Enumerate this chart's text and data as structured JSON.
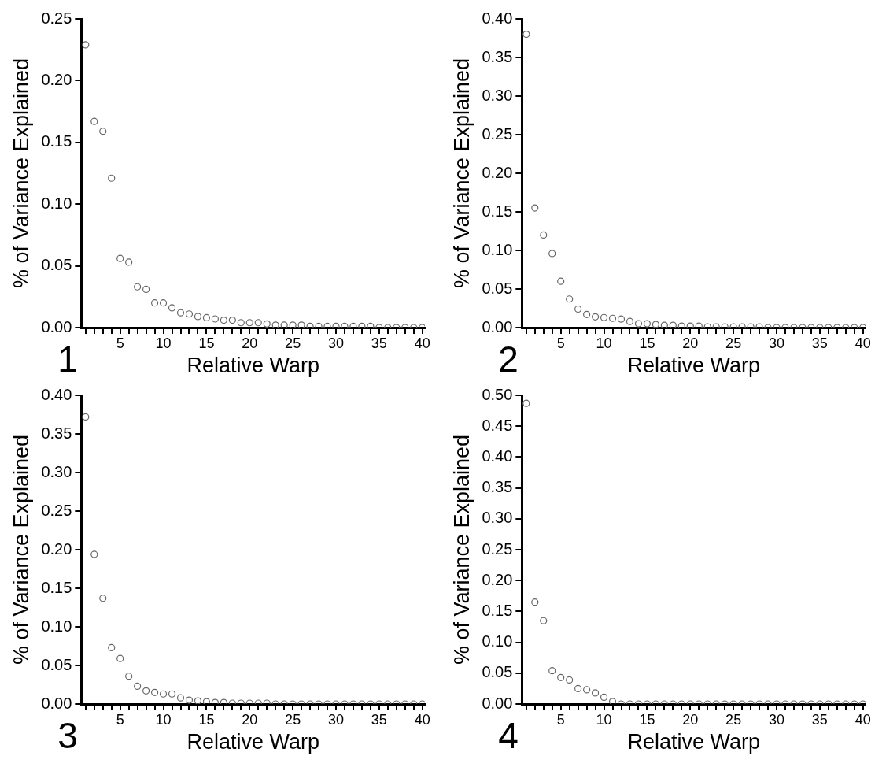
{
  "chart_data": [
    {
      "type": "scatter",
      "annotations": [
        "1"
      ],
      "xlabel": "Relative Warp",
      "ylabel": "% of Variance Explained",
      "marker": "circle",
      "grid": false,
      "legend": false,
      "x": [
        1,
        2,
        3,
        4,
        5,
        6,
        7,
        8,
        9,
        10,
        11,
        12,
        13,
        14,
        15,
        16,
        17,
        18,
        19,
        20,
        21,
        22,
        23,
        24,
        25,
        26,
        27,
        28,
        29,
        30,
        31,
        32,
        33,
        34,
        35,
        36,
        37,
        38,
        39,
        40
      ],
      "series": [
        {
          "color": "#666666",
          "values": [
            0.229,
            0.167,
            0.159,
            0.121,
            0.056,
            0.053,
            0.033,
            0.031,
            0.02,
            0.02,
            0.016,
            0.012,
            0.011,
            0.009,
            0.008,
            0.007,
            0.006,
            0.006,
            0.004,
            0.004,
            0.004,
            0.003,
            0.002,
            0.002,
            0.002,
            0.002,
            0.001,
            0.001,
            0.001,
            0.001,
            0.001,
            0.001,
            0.001,
            0.001,
            0,
            0,
            0,
            0,
            0,
            0
          ]
        }
      ],
      "xlim": [
        0.5,
        40.3
      ],
      "ylim": [
        0,
        0.25
      ],
      "xticks": [
        {
          "value": 1,
          "label": null
        },
        {
          "value": 2,
          "label": null
        },
        {
          "value": 3,
          "label": null
        },
        {
          "value": 4,
          "label": null
        },
        5,
        {
          "value": 6,
          "label": null
        },
        {
          "value": 7,
          "label": null
        },
        {
          "value": 8,
          "label": null
        },
        {
          "value": 9,
          "label": null
        },
        10,
        {
          "value": 11,
          "label": null
        },
        {
          "value": 12,
          "label": null
        },
        {
          "value": 13,
          "label": null
        },
        {
          "value": 14,
          "label": null
        },
        15,
        {
          "value": 16,
          "label": null
        },
        {
          "value": 17,
          "label": null
        },
        {
          "value": 18,
          "label": null
        },
        {
          "value": 19,
          "label": null
        },
        20,
        {
          "value": 21,
          "label": null
        },
        {
          "value": 22,
          "label": null
        },
        {
          "value": 23,
          "label": null
        },
        {
          "value": 24,
          "label": null
        },
        25,
        {
          "value": 26,
          "label": null
        },
        {
          "value": 27,
          "label": null
        },
        {
          "value": 28,
          "label": null
        },
        {
          "value": 29,
          "label": null
        },
        30,
        {
          "value": 31,
          "label": null
        },
        {
          "value": 32,
          "label": null
        },
        {
          "value": 33,
          "label": null
        },
        {
          "value": 34,
          "label": null
        },
        35,
        {
          "value": 36,
          "label": null
        },
        {
          "value": 37,
          "label": null
        },
        {
          "value": 38,
          "label": null
        },
        {
          "value": 39,
          "label": null
        },
        40
      ],
      "yticks": [
        {
          "value": 0,
          "label": "0.00"
        },
        {
          "value": 0.05,
          "label": "0.05"
        },
        {
          "value": 0.1,
          "label": "0.10"
        },
        {
          "value": 0.15,
          "label": "0.15"
        },
        {
          "value": 0.2,
          "label": "0.20"
        },
        {
          "value": 0.25,
          "label": "0.25"
        }
      ]
    },
    {
      "type": "scatter",
      "annotations": [
        "2"
      ],
      "xlabel": "Relative Warp",
      "ylabel": "% of Variance Explained",
      "marker": "circle",
      "grid": false,
      "legend": false,
      "x": [
        1,
        2,
        3,
        4,
        5,
        6,
        7,
        8,
        9,
        10,
        11,
        12,
        13,
        14,
        15,
        16,
        17,
        18,
        19,
        20,
        21,
        22,
        23,
        24,
        25,
        26,
        27,
        28,
        29,
        30,
        31,
        32,
        33,
        34,
        35,
        36,
        37,
        38,
        39,
        40
      ],
      "series": [
        {
          "color": "#666666",
          "values": [
            0.38,
            0.155,
            0.12,
            0.096,
            0.06,
            0.037,
            0.024,
            0.017,
            0.014,
            0.013,
            0.012,
            0.011,
            0.008,
            0.005,
            0.005,
            0.004,
            0.003,
            0.003,
            0.002,
            0.002,
            0.002,
            0.001,
            0.001,
            0.001,
            0.001,
            0.001,
            0.001,
            0.001,
            0,
            0,
            0,
            0,
            0,
            0,
            0,
            0,
            0,
            0,
            0,
            0
          ]
        }
      ],
      "xlim": [
        0.5,
        40.3
      ],
      "ylim": [
        0,
        0.4
      ],
      "xticks": [
        {
          "value": 1,
          "label": null
        },
        {
          "value": 2,
          "label": null
        },
        {
          "value": 3,
          "label": null
        },
        {
          "value": 4,
          "label": null
        },
        5,
        {
          "value": 6,
          "label": null
        },
        {
          "value": 7,
          "label": null
        },
        {
          "value": 8,
          "label": null
        },
        {
          "value": 9,
          "label": null
        },
        10,
        {
          "value": 11,
          "label": null
        },
        {
          "value": 12,
          "label": null
        },
        {
          "value": 13,
          "label": null
        },
        {
          "value": 14,
          "label": null
        },
        15,
        {
          "value": 16,
          "label": null
        },
        {
          "value": 17,
          "label": null
        },
        {
          "value": 18,
          "label": null
        },
        {
          "value": 19,
          "label": null
        },
        20,
        {
          "value": 21,
          "label": null
        },
        {
          "value": 22,
          "label": null
        },
        {
          "value": 23,
          "label": null
        },
        {
          "value": 24,
          "label": null
        },
        25,
        {
          "value": 26,
          "label": null
        },
        {
          "value": 27,
          "label": null
        },
        {
          "value": 28,
          "label": null
        },
        {
          "value": 29,
          "label": null
        },
        30,
        {
          "value": 31,
          "label": null
        },
        {
          "value": 32,
          "label": null
        },
        {
          "value": 33,
          "label": null
        },
        {
          "value": 34,
          "label": null
        },
        35,
        {
          "value": 36,
          "label": null
        },
        {
          "value": 37,
          "label": null
        },
        {
          "value": 38,
          "label": null
        },
        {
          "value": 39,
          "label": null
        },
        40
      ],
      "yticks": [
        {
          "value": 0,
          "label": "0.00"
        },
        {
          "value": 0.05,
          "label": "0.05"
        },
        {
          "value": 0.1,
          "label": "0.10"
        },
        {
          "value": 0.15,
          "label": "0.15"
        },
        {
          "value": 0.2,
          "label": "0.20"
        },
        {
          "value": 0.25,
          "label": "0.25"
        },
        {
          "value": 0.3,
          "label": "0.30"
        },
        {
          "value": 0.35,
          "label": "0.35"
        },
        {
          "value": 0.4,
          "label": "0.40"
        }
      ]
    },
    {
      "type": "scatter",
      "annotations": [
        "3"
      ],
      "xlabel": "Relative Warp",
      "ylabel": "% of Variance Explained",
      "marker": "circle",
      "grid": false,
      "legend": false,
      "x": [
        1,
        2,
        3,
        4,
        5,
        6,
        7,
        8,
        9,
        10,
        11,
        12,
        13,
        14,
        15,
        16,
        17,
        18,
        19,
        20,
        21,
        22,
        23,
        24,
        25,
        26,
        27,
        28,
        29,
        30,
        31,
        32,
        33,
        34,
        35,
        36,
        37,
        38,
        39,
        40
      ],
      "series": [
        {
          "color": "#666666",
          "values": [
            0.372,
            0.194,
            0.137,
            0.073,
            0.059,
            0.036,
            0.023,
            0.017,
            0.015,
            0.013,
            0.013,
            0.008,
            0.005,
            0.004,
            0.003,
            0.002,
            0.002,
            0.001,
            0.001,
            0.001,
            0.001,
            0.001,
            0,
            0,
            0,
            0,
            0,
            0,
            0,
            0,
            0,
            0,
            0,
            0,
            0,
            0,
            0,
            0,
            0,
            0
          ]
        }
      ],
      "xlim": [
        0.5,
        40.3
      ],
      "ylim": [
        0,
        0.4
      ],
      "xticks": [
        {
          "value": 1,
          "label": null
        },
        {
          "value": 2,
          "label": null
        },
        {
          "value": 3,
          "label": null
        },
        {
          "value": 4,
          "label": null
        },
        5,
        {
          "value": 6,
          "label": null
        },
        {
          "value": 7,
          "label": null
        },
        {
          "value": 8,
          "label": null
        },
        {
          "value": 9,
          "label": null
        },
        10,
        {
          "value": 11,
          "label": null
        },
        {
          "value": 12,
          "label": null
        },
        {
          "value": 13,
          "label": null
        },
        {
          "value": 14,
          "label": null
        },
        15,
        {
          "value": 16,
          "label": null
        },
        {
          "value": 17,
          "label": null
        },
        {
          "value": 18,
          "label": null
        },
        {
          "value": 19,
          "label": null
        },
        20,
        {
          "value": 21,
          "label": null
        },
        {
          "value": 22,
          "label": null
        },
        {
          "value": 23,
          "label": null
        },
        {
          "value": 24,
          "label": null
        },
        25,
        {
          "value": 26,
          "label": null
        },
        {
          "value": 27,
          "label": null
        },
        {
          "value": 28,
          "label": null
        },
        {
          "value": 29,
          "label": null
        },
        30,
        {
          "value": 31,
          "label": null
        },
        {
          "value": 32,
          "label": null
        },
        {
          "value": 33,
          "label": null
        },
        {
          "value": 34,
          "label": null
        },
        35,
        {
          "value": 36,
          "label": null
        },
        {
          "value": 37,
          "label": null
        },
        {
          "value": 38,
          "label": null
        },
        {
          "value": 39,
          "label": null
        },
        40
      ],
      "yticks": [
        {
          "value": 0,
          "label": "0.00"
        },
        {
          "value": 0.05,
          "label": "0.05"
        },
        {
          "value": 0.1,
          "label": "0.10"
        },
        {
          "value": 0.15,
          "label": "0.15"
        },
        {
          "value": 0.2,
          "label": "0.20"
        },
        {
          "value": 0.25,
          "label": "0.25"
        },
        {
          "value": 0.3,
          "label": "0.30"
        },
        {
          "value": 0.35,
          "label": "0.35"
        },
        {
          "value": 0.4,
          "label": "0.40"
        }
      ]
    },
    {
      "type": "scatter",
      "annotations": [
        "4"
      ],
      "xlabel": "Relative Warp",
      "ylabel": "% of Variance Explained",
      "marker": "circle",
      "grid": false,
      "legend": false,
      "x": [
        1,
        2,
        3,
        4,
        5,
        6,
        7,
        8,
        9,
        10,
        11,
        12,
        13,
        14,
        15,
        16,
        17,
        18,
        19,
        20,
        21,
        22,
        23,
        24,
        25,
        26,
        27,
        28,
        29,
        30,
        31,
        32,
        33,
        34,
        35,
        36,
        37,
        38,
        39,
        40
      ],
      "series": [
        {
          "color": "#666666",
          "values": [
            0.487,
            0.165,
            0.135,
            0.054,
            0.043,
            0.039,
            0.025,
            0.023,
            0.018,
            0.011,
            0.004,
            0,
            0,
            0,
            0,
            0,
            0,
            0,
            0,
            0,
            0,
            0,
            0,
            0,
            0,
            0,
            0,
            0,
            0,
            0,
            0,
            0,
            0,
            0,
            0,
            0,
            0,
            0,
            0,
            0
          ]
        }
      ],
      "xlim": [
        0.5,
        40.3
      ],
      "ylim": [
        0,
        0.5
      ],
      "xticks": [
        {
          "value": 1,
          "label": null
        },
        {
          "value": 2,
          "label": null
        },
        {
          "value": 3,
          "label": null
        },
        {
          "value": 4,
          "label": null
        },
        5,
        {
          "value": 6,
          "label": null
        },
        {
          "value": 7,
          "label": null
        },
        {
          "value": 8,
          "label": null
        },
        {
          "value": 9,
          "label": null
        },
        10,
        {
          "value": 11,
          "label": null
        },
        {
          "value": 12,
          "label": null
        },
        {
          "value": 13,
          "label": null
        },
        {
          "value": 14,
          "label": null
        },
        15,
        {
          "value": 16,
          "label": null
        },
        {
          "value": 17,
          "label": null
        },
        {
          "value": 18,
          "label": null
        },
        {
          "value": 19,
          "label": null
        },
        20,
        {
          "value": 21,
          "label": null
        },
        {
          "value": 22,
          "label": null
        },
        {
          "value": 23,
          "label": null
        },
        {
          "value": 24,
          "label": null
        },
        25,
        {
          "value": 26,
          "label": null
        },
        {
          "value": 27,
          "label": null
        },
        {
          "value": 28,
          "label": null
        },
        {
          "value": 29,
          "label": null
        },
        30,
        {
          "value": 31,
          "label": null
        },
        {
          "value": 32,
          "label": null
        },
        {
          "value": 33,
          "label": null
        },
        {
          "value": 34,
          "label": null
        },
        35,
        {
          "value": 36,
          "label": null
        },
        {
          "value": 37,
          "label": null
        },
        {
          "value": 38,
          "label": null
        },
        {
          "value": 39,
          "label": null
        },
        40
      ],
      "yticks": [
        {
          "value": 0,
          "label": "0.00"
        },
        {
          "value": 0.05,
          "label": "0.05"
        },
        {
          "value": 0.1,
          "label": "0.10"
        },
        {
          "value": 0.15,
          "label": "0.15"
        },
        {
          "value": 0.2,
          "label": "0.20"
        },
        {
          "value": 0.25,
          "label": "0.25"
        },
        {
          "value": 0.3,
          "label": "0.30"
        },
        {
          "value": 0.35,
          "label": "0.35"
        },
        {
          "value": 0.4,
          "label": "0.40"
        },
        {
          "value": 0.45,
          "label": "0.45"
        },
        {
          "value": 0.5,
          "label": "0.50"
        }
      ]
    }
  ]
}
